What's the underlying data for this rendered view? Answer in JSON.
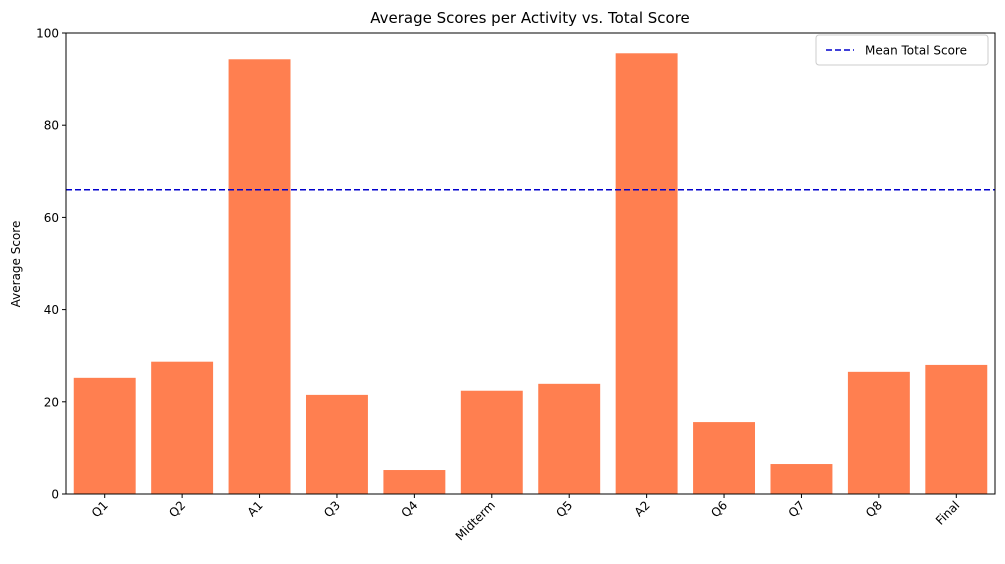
{
  "chart_data": {
    "type": "bar",
    "title": "Average Scores per Activity vs. Total Score",
    "xlabel": "",
    "ylabel": "Average Score",
    "categories": [
      "Q1",
      "Q2",
      "A1",
      "Q3",
      "Q4",
      "Midterm",
      "Q5",
      "A2",
      "Q6",
      "Q7",
      "Q8",
      "Final"
    ],
    "values": [
      25.2,
      28.7,
      94.3,
      21.5,
      5.2,
      22.4,
      23.9,
      95.6,
      15.6,
      6.5,
      26.5,
      28.0
    ],
    "ylim": [
      0,
      100
    ],
    "yticks": [
      0,
      20,
      40,
      60,
      80,
      100
    ],
    "bar_color": "#ff7f50",
    "reference_line": {
      "label": "Mean Total Score",
      "value": 66.0,
      "color": "#0000cc",
      "style": "dashed"
    },
    "legend": {
      "position": "top-right",
      "entries": [
        "Mean Total Score"
      ]
    },
    "grid": false
  }
}
